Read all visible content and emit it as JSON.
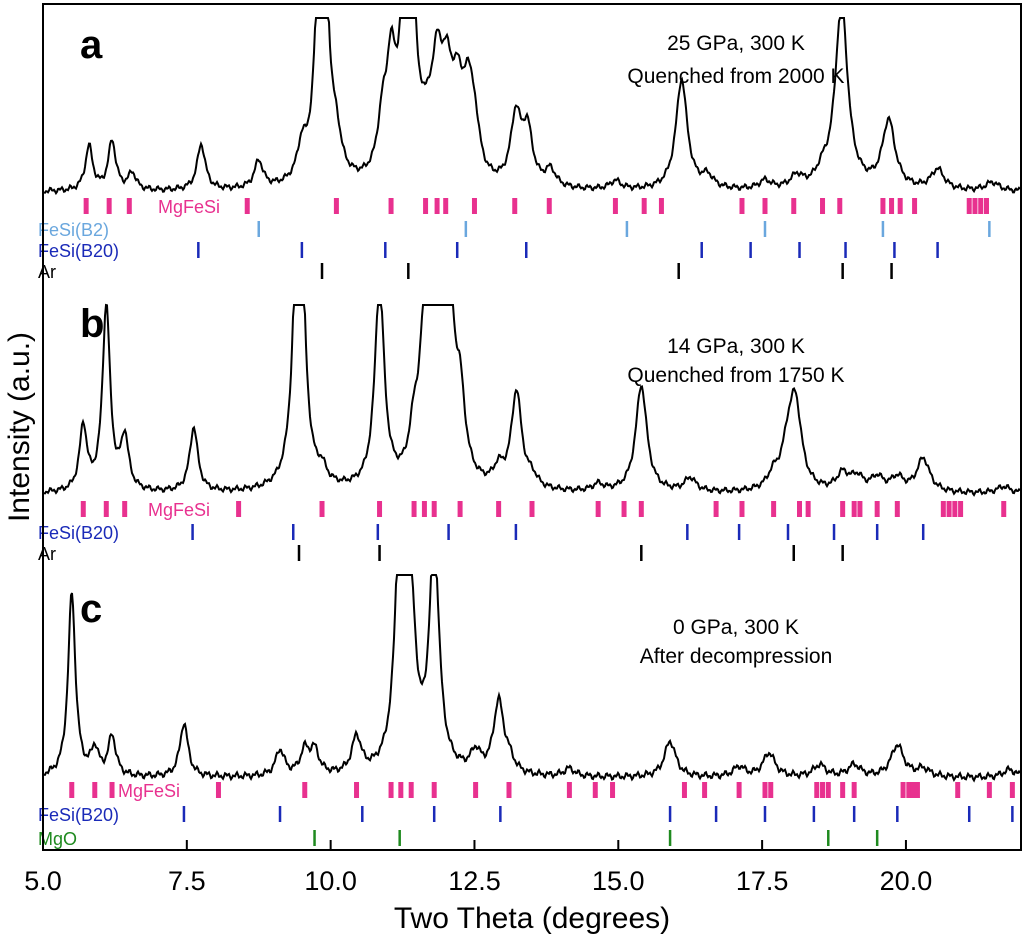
{
  "chart_data": {
    "type": "line",
    "xlabel": "Two Theta (degrees)",
    "ylabel": "Intensity (a.u.)",
    "xlim": [
      5.0,
      22.0
    ],
    "xticks": [
      5.0,
      7.5,
      10.0,
      12.5,
      15.0,
      17.5,
      20.0
    ],
    "xtick_labels": [
      "5.0",
      "7.5",
      "10.0",
      "12.5",
      "15.0",
      "17.5",
      "20.0"
    ],
    "grid": false,
    "colors": {
      "MgFeSi": "#e8318f",
      "FeSi(B2)": "#6aa7de",
      "FeSi(B20)": "#1a2ab8",
      "Ar": "#000000",
      "MgO": "#1f8a1f",
      "pattern": "#000000"
    },
    "panels": [
      {
        "letter": "a",
        "annotation": [
          "25 GPa,  300 K",
          "Quenched from 2000 K"
        ],
        "peaks": [
          {
            "x": 5.8,
            "h": 0.26
          },
          {
            "x": 6.2,
            "h": 0.29
          },
          {
            "x": 6.55,
            "h": 0.1
          },
          {
            "x": 7.75,
            "h": 0.27
          },
          {
            "x": 8.75,
            "h": 0.16
          },
          {
            "x": 9.5,
            "h": 0.18
          },
          {
            "x": 9.85,
            "h": 2.4
          },
          {
            "x": 10.1,
            "h": 0.18
          },
          {
            "x": 10.9,
            "h": 0.28
          },
          {
            "x": 11.05,
            "h": 0.58
          },
          {
            "x": 11.35,
            "h": 2.4
          },
          {
            "x": 11.68,
            "h": 0.2
          },
          {
            "x": 11.85,
            "h": 0.6
          },
          {
            "x": 12.02,
            "h": 0.52
          },
          {
            "x": 12.2,
            "h": 0.45
          },
          {
            "x": 12.38,
            "h": 0.45
          },
          {
            "x": 12.5,
            "h": 0.28
          },
          {
            "x": 13.22,
            "h": 0.4
          },
          {
            "x": 13.42,
            "h": 0.32
          },
          {
            "x": 13.82,
            "h": 0.1
          },
          {
            "x": 14.95,
            "h": 0.05
          },
          {
            "x": 16.1,
            "h": 0.65
          },
          {
            "x": 16.55,
            "h": 0.07
          },
          {
            "x": 17.55,
            "h": 0.05
          },
          {
            "x": 18.1,
            "h": 0.07
          },
          {
            "x": 18.55,
            "h": 0.07
          },
          {
            "x": 18.88,
            "h": 1.1
          },
          {
            "x": 19.7,
            "h": 0.4
          },
          {
            "x": 20.55,
            "h": 0.12
          },
          {
            "x": 21.5,
            "h": 0.05
          }
        ],
        "tick_series": [
          {
            "name": "MgFeSi",
            "color": "#e8318f",
            "heavy": true,
            "positions": [
              5.75,
              6.15,
              6.5,
              8.55,
              10.1,
              11.05,
              11.65,
              11.85,
              12.0,
              12.5,
              13.2,
              13.8,
              14.95,
              15.45,
              15.75,
              17.15,
              17.55,
              18.05,
              18.55,
              18.85,
              19.6,
              19.75,
              19.9,
              20.15,
              21.1,
              21.2,
              21.3,
              21.4
            ]
          },
          {
            "name": "FeSi(B2)",
            "color": "#6aa7de",
            "positions": [
              8.75,
              12.35,
              15.15,
              17.55,
              19.6,
              21.45
            ]
          },
          {
            "name": "FeSi(B20)",
            "color": "#1a2ab8",
            "positions": [
              7.7,
              9.5,
              10.95,
              12.2,
              13.4,
              16.45,
              17.3,
              18.15,
              18.95,
              19.8,
              20.55
            ]
          },
          {
            "name": "Ar",
            "color": "#000000",
            "positions": [
              9.85,
              11.35,
              16.05,
              18.9,
              19.75
            ]
          }
        ]
      },
      {
        "letter": "b",
        "annotation": [
          "14 GPa,  300 K",
          "Quenched from 1750 K"
        ],
        "peaks": [
          {
            "x": 5.7,
            "h": 0.38
          },
          {
            "x": 6.1,
            "h": 1.1
          },
          {
            "x": 6.42,
            "h": 0.31
          },
          {
            "x": 7.62,
            "h": 0.38
          },
          {
            "x": 9.45,
            "h": 2.3
          },
          {
            "x": 9.85,
            "h": 0.08
          },
          {
            "x": 10.85,
            "h": 1.2
          },
          {
            "x": 11.45,
            "h": 0.25
          },
          {
            "x": 11.63,
            "h": 0.78
          },
          {
            "x": 11.8,
            "h": 0.9
          },
          {
            "x": 11.98,
            "h": 0.42
          },
          {
            "x": 12.05,
            "h": 1.05
          },
          {
            "x": 12.25,
            "h": 0.44
          },
          {
            "x": 12.92,
            "h": 0.1
          },
          {
            "x": 13.23,
            "h": 0.57
          },
          {
            "x": 13.5,
            "h": 0.06
          },
          {
            "x": 14.65,
            "h": 0.04
          },
          {
            "x": 15.4,
            "h": 0.63
          },
          {
            "x": 16.25,
            "h": 0.08
          },
          {
            "x": 17.7,
            "h": 0.08
          },
          {
            "x": 17.95,
            "h": 0.22
          },
          {
            "x": 18.08,
            "h": 0.48
          },
          {
            "x": 18.9,
            "h": 0.1
          },
          {
            "x": 19.15,
            "h": 0.08
          },
          {
            "x": 19.5,
            "h": 0.08
          },
          {
            "x": 19.85,
            "h": 0.08
          },
          {
            "x": 20.3,
            "h": 0.2
          },
          {
            "x": 21.7,
            "h": 0.04
          }
        ],
        "tick_series": [
          {
            "name": "MgFeSi",
            "color": "#e8318f",
            "heavy": true,
            "positions": [
              5.7,
              6.1,
              6.42,
              8.4,
              9.85,
              10.85,
              11.45,
              11.63,
              11.8,
              12.25,
              12.92,
              13.5,
              14.65,
              15.1,
              15.4,
              16.7,
              17.15,
              17.7,
              18.15,
              18.3,
              18.9,
              19.1,
              19.2,
              19.5,
              19.85,
              20.65,
              20.75,
              20.85,
              20.95,
              21.7
            ]
          },
          {
            "name": "FeSi(B20)",
            "color": "#1a2ab8",
            "positions": [
              7.6,
              9.35,
              10.82,
              12.05,
              13.22,
              16.2,
              17.1,
              17.95,
              18.75,
              19.5,
              20.3
            ]
          },
          {
            "name": "Ar",
            "color": "#000000",
            "positions": [
              9.45,
              10.85,
              15.4,
              18.05,
              18.9
            ]
          }
        ]
      },
      {
        "letter": "c",
        "annotation": [
          "0 GPa,  300 K",
          "After decompression"
        ],
        "peaks": [
          {
            "x": 5.5,
            "h": 0.92
          },
          {
            "x": 5.9,
            "h": 0.13
          },
          {
            "x": 6.2,
            "h": 0.2
          },
          {
            "x": 7.45,
            "h": 0.27
          },
          {
            "x": 9.12,
            "h": 0.13
          },
          {
            "x": 9.55,
            "h": 0.12
          },
          {
            "x": 9.72,
            "h": 0.12
          },
          {
            "x": 10.45,
            "h": 0.18
          },
          {
            "x": 11.22,
            "h": 1.45
          },
          {
            "x": 11.4,
            "h": 0.65
          },
          {
            "x": 11.8,
            "h": 1.15
          },
          {
            "x": 12.52,
            "h": 0.1
          },
          {
            "x": 12.92,
            "h": 0.36
          },
          {
            "x": 13.1,
            "h": 0.06
          },
          {
            "x": 14.15,
            "h": 0.04
          },
          {
            "x": 15.9,
            "h": 0.18
          },
          {
            "x": 17.1,
            "h": 0.05
          },
          {
            "x": 17.62,
            "h": 0.12
          },
          {
            "x": 18.5,
            "h": 0.06
          },
          {
            "x": 19.1,
            "h": 0.06
          },
          {
            "x": 19.85,
            "h": 0.16
          },
          {
            "x": 20.3,
            "h": 0.04
          },
          {
            "x": 21.8,
            "h": 0.04
          }
        ],
        "tick_series": [
          {
            "name": "MgFeSi",
            "color": "#e8318f",
            "heavy": true,
            "positions": [
              5.5,
              5.9,
              6.2,
              8.05,
              9.55,
              10.45,
              11.05,
              11.22,
              11.4,
              11.8,
              12.52,
              13.1,
              14.15,
              14.6,
              14.9,
              16.15,
              16.5,
              17.1,
              17.55,
              17.65,
              18.45,
              18.55,
              18.65,
              18.9,
              19.1,
              19.95,
              20.05,
              20.12,
              20.2,
              20.9,
              21.45,
              21.85
            ]
          },
          {
            "name": "FeSi(B20)",
            "color": "#1a2ab8",
            "positions": [
              7.45,
              9.12,
              10.55,
              11.8,
              12.95,
              15.9,
              16.7,
              17.55,
              18.4,
              19.1,
              19.85,
              21.1,
              21.85
            ]
          },
          {
            "name": "MgO",
            "color": "#1f8a1f",
            "positions": [
              9.72,
              11.2,
              15.9,
              18.65,
              19.5
            ]
          }
        ]
      }
    ]
  }
}
